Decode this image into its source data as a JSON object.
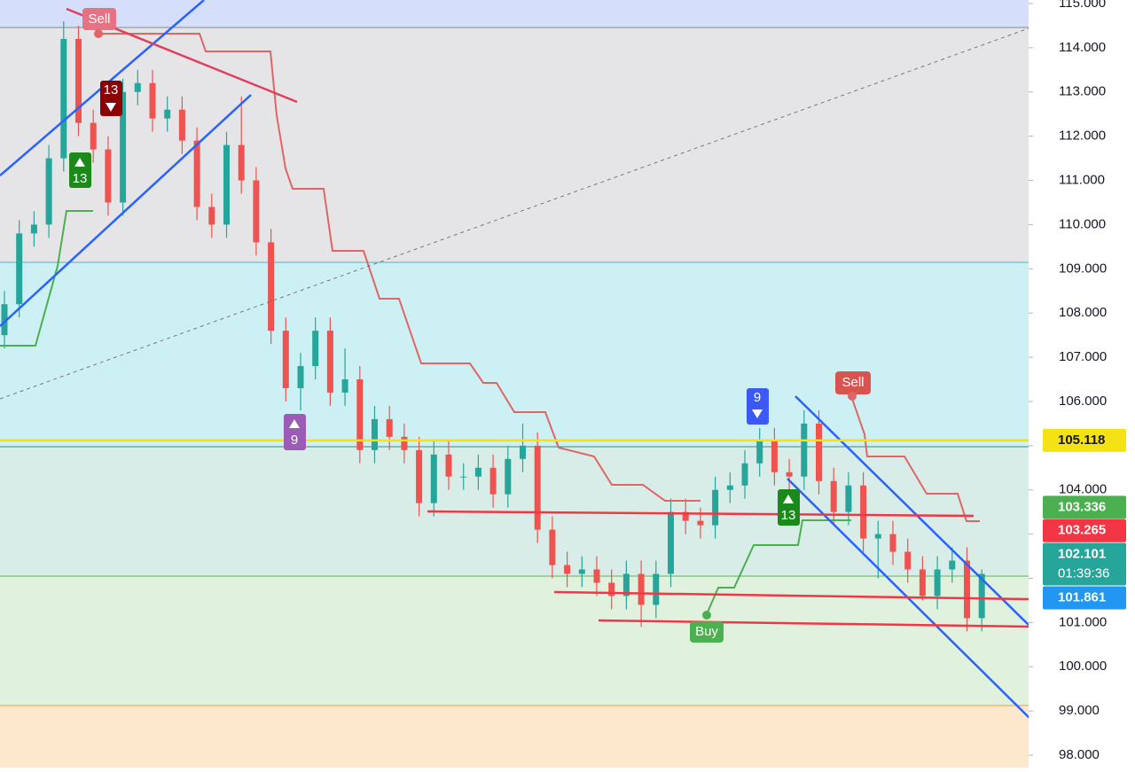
{
  "chart_data": {
    "type": "candlestick",
    "open": [
      107.5,
      108.2,
      109.8,
      110.0,
      111.5,
      114.2,
      112.3,
      111.7,
      110.5,
      113.0,
      113.2,
      112.4,
      112.6,
      111.9,
      110.4,
      110.0,
      111.8,
      111.0,
      109.6,
      107.6,
      106.3,
      106.8,
      107.6,
      106.2,
      106.5,
      104.9,
      105.6,
      105.2,
      104.9,
      103.7,
      104.8,
      104.3,
      104.3,
      104.5,
      103.9,
      104.7,
      105.0,
      103.1,
      102.3,
      102.1,
      102.2,
      101.9,
      101.6,
      102.1,
      101.4,
      102.1,
      103.5,
      103.3,
      103.2,
      104.0,
      104.1,
      104.6,
      105.1,
      104.4,
      104.3,
      105.5,
      104.2,
      103.5,
      104.1,
      102.9,
      103.0,
      102.6,
      102.2,
      101.6,
      102.2,
      102.4,
      101.1
    ],
    "high": [
      108.5,
      110.1,
      110.3,
      111.8,
      114.6,
      114.5,
      112.6,
      112.0,
      113.3,
      113.5,
      113.5,
      112.9,
      112.9,
      112.2,
      110.7,
      112.1,
      112.9,
      111.3,
      109.9,
      107.9,
      107.1,
      107.9,
      107.9,
      107.2,
      106.8,
      105.9,
      105.9,
      105.5,
      105.2,
      105.1,
      105.1,
      104.6,
      104.8,
      104.8,
      105.0,
      105.5,
      105.3,
      103.4,
      102.6,
      102.5,
      102.5,
      102.2,
      102.4,
      102.4,
      102.4,
      103.8,
      103.8,
      103.6,
      104.3,
      104.4,
      104.9,
      105.4,
      105.4,
      104.7,
      105.8,
      105.8,
      104.5,
      104.4,
      104.4,
      103.3,
      103.3,
      102.9,
      102.5,
      102.5,
      102.7,
      102.7,
      102.2
    ],
    "low": [
      107.2,
      107.9,
      109.5,
      109.7,
      111.2,
      112.0,
      111.4,
      110.2,
      110.2,
      112.7,
      112.1,
      112.1,
      111.6,
      110.1,
      109.7,
      109.7,
      110.7,
      109.3,
      107.3,
      106.0,
      105.8,
      106.5,
      105.9,
      105.9,
      104.6,
      104.6,
      104.9,
      104.6,
      103.4,
      103.4,
      104.0,
      104.0,
      104.0,
      103.6,
      103.6,
      104.4,
      102.8,
      102.0,
      101.8,
      101.8,
      101.6,
      101.3,
      101.3,
      100.9,
      101.1,
      101.8,
      103.0,
      102.9,
      102.9,
      103.7,
      103.8,
      104.3,
      104.1,
      104.0,
      104.0,
      103.9,
      103.2,
      103.2,
      102.6,
      102.0,
      102.3,
      101.9,
      101.5,
      101.3,
      101.9,
      100.8,
      100.8
    ],
    "close": [
      108.2,
      109.8,
      110.0,
      111.5,
      114.2,
      112.3,
      111.7,
      110.5,
      113.0,
      113.2,
      112.4,
      112.6,
      111.9,
      110.4,
      110.0,
      111.8,
      111.0,
      109.6,
      107.6,
      106.3,
      106.8,
      107.6,
      106.2,
      106.5,
      104.9,
      105.6,
      105.2,
      104.9,
      103.7,
      104.8,
      104.3,
      104.3,
      104.5,
      103.9,
      104.7,
      105.0,
      103.1,
      102.3,
      102.1,
      102.2,
      101.9,
      101.6,
      102.1,
      101.4,
      102.1,
      103.5,
      103.3,
      103.2,
      104.0,
      104.1,
      104.6,
      105.1,
      104.4,
      104.3,
      105.5,
      104.2,
      103.5,
      104.1,
      102.9,
      103.0,
      102.6,
      102.2,
      101.6,
      102.2,
      102.4,
      101.1,
      102.1
    ],
    "up_color": "#26a69a",
    "down_color": "#ef5350",
    "ylim": [
      98,
      115
    ],
    "yticks": [
      {
        "value": 98,
        "label": "98.000"
      },
      {
        "value": 99,
        "label": "99.000"
      },
      {
        "value": 100,
        "label": "100.000"
      },
      {
        "value": 101,
        "label": "101.000"
      },
      {
        "value": 102,
        "label": "102.000"
      },
      {
        "value": 103,
        "label": "103.000"
      },
      {
        "value": 104,
        "label": "104.000"
      },
      {
        "value": 105,
        "label": "105.000"
      },
      {
        "value": 106,
        "label": "106.000"
      },
      {
        "value": 107,
        "label": "107.000"
      },
      {
        "value": 108,
        "label": "108.000"
      },
      {
        "value": 109,
        "label": "109.000"
      },
      {
        "value": 110,
        "label": "110.000"
      },
      {
        "value": 111,
        "label": "111.000"
      },
      {
        "value": 112,
        "label": "112.000"
      },
      {
        "value": 113,
        "label": "113.000"
      },
      {
        "value": 114,
        "label": "114.000"
      },
      {
        "value": 115,
        "label": "115.000"
      }
    ],
    "price_labels": [
      {
        "value": 105.118,
        "color": "#f5e214",
        "text_color": "#131722"
      },
      {
        "value": 103.336,
        "color": "#4caf50",
        "text_color": "#ffffff"
      },
      {
        "value": 103.265,
        "color": "#f23645",
        "text_color": "#ffffff"
      },
      {
        "value": 102.101,
        "color": "#26a69a",
        "text_color": "#ffffff",
        "countdown": "01:39:36"
      },
      {
        "value": 101.861,
        "color": "#2196f3",
        "text_color": "#ffffff"
      }
    ],
    "annotations": [
      "Sell",
      "13",
      "13",
      "9",
      "9",
      "Sell",
      "13",
      "Buy"
    ]
  }
}
